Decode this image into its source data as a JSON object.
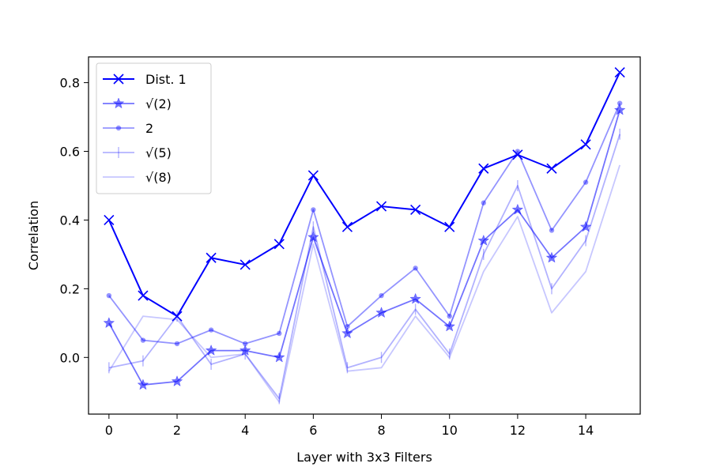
{
  "chart_data": {
    "type": "line",
    "xlabel": "Layer with 3x3 Filters",
    "ylabel": "Correlation",
    "xlim": [
      -0.6,
      15.6
    ],
    "ylim": [
      -0.165,
      0.875
    ],
    "xticks": [
      0,
      2,
      4,
      6,
      8,
      10,
      12,
      14
    ],
    "yticks": [
      0.0,
      0.2,
      0.4,
      0.6,
      0.8
    ],
    "ytick_labels": [
      "0.0",
      "0.2",
      "0.4",
      "0.6",
      "0.8"
    ],
    "grid": false,
    "legend_position": "top-left",
    "x": [
      0,
      1,
      2,
      3,
      4,
      5,
      6,
      7,
      8,
      9,
      10,
      11,
      12,
      13,
      14,
      15
    ],
    "series": [
      {
        "name": "Dist. 1",
        "marker": "x",
        "color": "#0000ff",
        "opacity": 1.0,
        "values": [
          0.4,
          0.18,
          0.12,
          0.29,
          0.27,
          0.33,
          0.53,
          0.38,
          0.44,
          0.43,
          0.38,
          0.55,
          0.59,
          0.55,
          0.62,
          0.83
        ]
      },
      {
        "name": "√(2)",
        "marker": "star",
        "color": "#0000ff",
        "opacity": 0.55,
        "values": [
          0.1,
          -0.08,
          -0.07,
          0.02,
          0.02,
          0.0,
          0.35,
          0.07,
          0.13,
          0.17,
          0.09,
          0.34,
          0.43,
          0.29,
          0.38,
          0.72
        ]
      },
      {
        "name": "2",
        "marker": "dot",
        "color": "#0000ff",
        "opacity": 0.42,
        "values": [
          0.18,
          0.05,
          0.04,
          0.08,
          0.04,
          0.07,
          0.43,
          0.09,
          0.18,
          0.26,
          0.12,
          0.45,
          0.6,
          0.37,
          0.51,
          0.74
        ]
      },
      {
        "name": "√(5)",
        "marker": "vline",
        "color": "#0000ff",
        "opacity": 0.3,
        "values": [
          -0.03,
          -0.01,
          0.12,
          -0.02,
          0.01,
          -0.12,
          0.38,
          -0.03,
          0.0,
          0.14,
          0.01,
          0.3,
          0.5,
          0.2,
          0.34,
          0.65
        ]
      },
      {
        "name": "√(8)",
        "marker": "none",
        "color": "#0000ff",
        "opacity": 0.22,
        "values": [
          -0.04,
          0.12,
          0.11,
          0.0,
          0.01,
          -0.13,
          0.33,
          -0.04,
          -0.03,
          0.12,
          0.0,
          0.25,
          0.41,
          0.13,
          0.25,
          0.56
        ]
      }
    ]
  }
}
